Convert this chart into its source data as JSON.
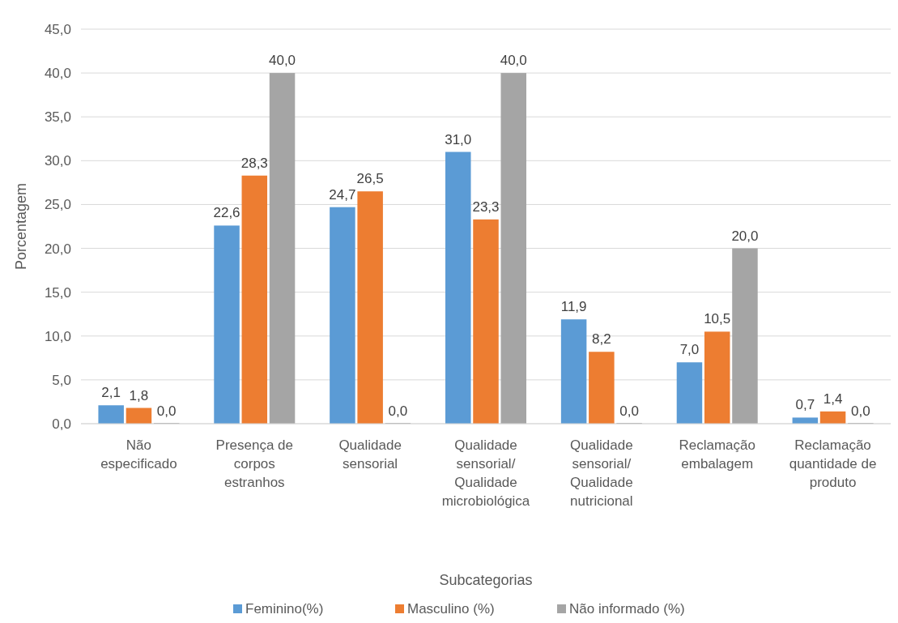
{
  "chart_data": {
    "type": "bar",
    "xlabel": "Subcategorias",
    "ylabel": "Porcentagem",
    "categories": [
      "Não especificado",
      "Presença de corpos estranhos",
      "Qualidade sensorial",
      "Qualidade sensorial/ Qualidade microbiológica",
      "Qualidade sensorial/ Qualidade nutricional",
      "Reclamação embalagem",
      "Reclamação quantidade de produto"
    ],
    "series": [
      {
        "name": "Feminino(%)",
        "color": "#5b9bd5",
        "values": [
          2.1,
          22.6,
          24.7,
          31.0,
          11.9,
          7.0,
          0.7
        ],
        "value_labels": [
          "2,1",
          "22,6",
          "24,7",
          "31,0",
          "11,9",
          "7,0",
          "0,7"
        ]
      },
      {
        "name": "Masculino (%)",
        "color": "#ed7d31",
        "values": [
          1.8,
          28.3,
          26.5,
          23.3,
          8.2,
          10.5,
          1.4
        ],
        "value_labels": [
          "1,8",
          "28,3",
          "26,5",
          "23,3",
          "8,2",
          "10,5",
          "1,4"
        ]
      },
      {
        "name": "Não informado (%)",
        "color": "#a5a5a5",
        "values": [
          0.0,
          40.0,
          0.0,
          40.0,
          0.0,
          20.0,
          0.0
        ],
        "value_labels": [
          "0,0",
          "40,0",
          "0,0",
          "40,0",
          "0,0",
          "20,0",
          "0,0"
        ]
      }
    ],
    "ylim": [
      0,
      45
    ],
    "yticks": [
      {
        "value": 0,
        "label": "0,0"
      },
      {
        "value": 5,
        "label": "5,0"
      },
      {
        "value": 10,
        "label": "10,0"
      },
      {
        "value": 15,
        "label": "15,0"
      },
      {
        "value": 20,
        "label": "20,0"
      },
      {
        "value": 25,
        "label": "25,0"
      },
      {
        "value": 30,
        "label": "30,0"
      },
      {
        "value": 35,
        "label": "35,0"
      },
      {
        "value": 40,
        "label": "40,0"
      },
      {
        "value": 45,
        "label": "45,0"
      }
    ],
    "grid": "y",
    "legend": "bottom"
  }
}
